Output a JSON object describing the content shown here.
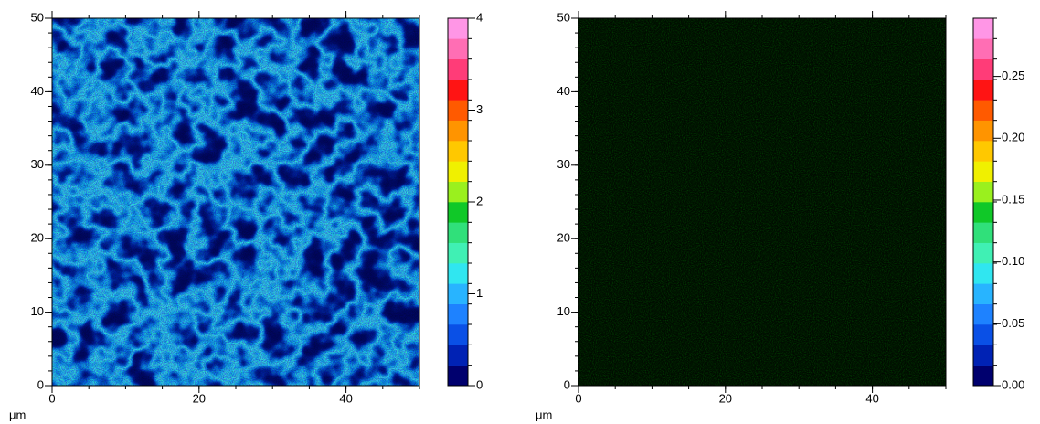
{
  "chart_data": [
    {
      "type": "heatmap",
      "x_label": "μm",
      "xlim": [
        0,
        50
      ],
      "ylim": [
        0,
        50
      ],
      "xticks": [
        0,
        20,
        40
      ],
      "yticks": [
        0,
        10,
        20,
        30,
        40,
        50
      ],
      "clim": [
        0,
        4
      ],
      "cticks": [
        0,
        1,
        2,
        3,
        4
      ],
      "colors": [
        "#00006e",
        "#0022b4",
        "#0a50e6",
        "#1e82ff",
        "#28b4ff",
        "#30e6f0",
        "#40f0b4",
        "#30e07a",
        "#10c828",
        "#9af01e",
        "#f0f000",
        "#ffc800",
        "#ff9400",
        "#ff5a00",
        "#ff1414",
        "#ff3c78",
        "#ff6eb4",
        "#ff96e6"
      ]
    },
    {
      "type": "heatmap",
      "x_label": "μm",
      "xlim": [
        0,
        50
      ],
      "ylim": [
        0,
        50
      ],
      "xticks": [
        0,
        20,
        40
      ],
      "yticks": [
        0,
        10,
        20,
        30,
        40,
        50
      ],
      "clim": [
        0,
        0.297
      ],
      "cticks": [
        {
          "value": 0,
          "label": "0.00"
        },
        {
          "value": 0.05,
          "label": "0.05"
        },
        {
          "value": 0.1,
          "label": "0.10"
        },
        {
          "value": 0.15,
          "label": "0.15"
        },
        {
          "value": 0.2,
          "label": "0.20"
        },
        {
          "value": 0.25,
          "label": "0.25"
        }
      ],
      "colors": [
        "#00006e",
        "#0022b4",
        "#0a50e6",
        "#1e82ff",
        "#28b4ff",
        "#30e6f0",
        "#40f0b4",
        "#30e07a",
        "#10c828",
        "#9af01e",
        "#f0f000",
        "#ffc800",
        "#ff9400",
        "#ff5a00",
        "#ff1414",
        "#ff3c78",
        "#ff6eb4",
        "#ff96e6"
      ]
    }
  ]
}
